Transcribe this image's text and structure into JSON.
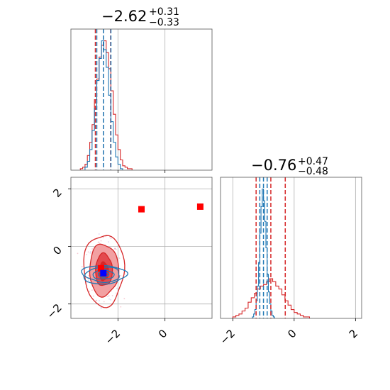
{
  "colors": {
    "red": "#d62728",
    "blue": "#1f77b4",
    "red_mid": "#e34a4e",
    "red_light": "#f2a0a2",
    "marker_red": "#ff0000",
    "marker_blue": "#0000ff"
  },
  "chart_data": {
    "type": "corner",
    "parameters": [
      {
        "title_value": "−2.62",
        "title_plus": "+0.31",
        "title_minus": "−0.33"
      },
      {
        "title_value": "−0.76",
        "title_plus": "+0.47",
        "title_minus": "−0.48"
      }
    ],
    "xlim_p1": [
      -4.0,
      2.0
    ],
    "xlim_p2": [
      -2.4,
      2.2
    ],
    "ylim_p2_2d": [
      -2.5,
      2.4
    ],
    "ticks_p1": [
      -2,
      0
    ],
    "ticks_p2": [
      -2,
      0,
      2
    ],
    "tick_labels_p1": [
      "−2",
      "0"
    ],
    "tick_labels_p2": [
      "−2",
      "0",
      "2"
    ],
    "red_quantiles_p1": [
      -2.96,
      -2.62,
      -2.31
    ],
    "blue_quantiles_p1": [
      -2.9,
      -2.62,
      -2.3
    ],
    "red_quantiles_p2": [
      -1.24,
      -0.76,
      -0.29
    ],
    "blue_quantiles_p2": [
      -1.12,
      -1.0,
      -0.88
    ],
    "hist_p1_red": {
      "edges": [
        -3.6,
        -3.5,
        -3.4,
        -3.3,
        -3.2,
        -3.1,
        -3.0,
        -2.9,
        -2.8,
        -2.7,
        -2.6,
        -2.5,
        -2.4,
        -2.3,
        -2.2,
        -2.1,
        -2.0,
        -1.9,
        -1.8,
        -1.7,
        -1.6,
        -1.5,
        -1.4
      ],
      "counts": [
        1,
        2,
        4,
        10,
        19,
        31,
        48,
        62,
        77,
        85,
        88,
        80,
        69,
        54,
        38,
        24,
        14,
        7,
        3,
        2,
        1,
        1
      ]
    },
    "hist_p1_blue": {
      "edges": [
        -3.4,
        -3.3,
        -3.2,
        -3.1,
        -3.0,
        -2.9,
        -2.8,
        -2.7,
        -2.6,
        -2.5,
        -2.4,
        -2.3,
        -2.2,
        -2.1,
        -2.0,
        -1.9,
        -1.8
      ],
      "counts": [
        2,
        6,
        14,
        27,
        42,
        61,
        76,
        88,
        82,
        70,
        51,
        33,
        19,
        9,
        4,
        1
      ]
    },
    "hist_p2_red": {
      "edges": [
        -2.0,
        -1.9,
        -1.8,
        -1.7,
        -1.6,
        -1.5,
        -1.4,
        -1.3,
        -1.2,
        -1.1,
        -1.0,
        -0.9,
        -0.8,
        -0.7,
        -0.6,
        -0.5,
        -0.4,
        -0.3,
        -0.2,
        -0.1,
        0.0,
        0.1,
        0.2,
        0.3,
        0.4,
        0.5
      ],
      "counts": [
        1,
        2,
        3,
        5,
        7,
        11,
        14,
        17,
        20,
        22,
        23,
        25,
        27,
        25,
        22,
        20,
        16,
        12,
        9,
        6,
        4,
        3,
        2,
        1,
        1
      ]
    },
    "hist_p2_blue": {
      "edges": [
        -1.36,
        -1.32,
        -1.28,
        -1.24,
        -1.2,
        -1.16,
        -1.12,
        -1.08,
        -1.04,
        -1.0,
        -0.96,
        -0.92,
        -0.88,
        -0.84,
        -0.8,
        -0.76,
        -0.72,
        -0.68,
        -0.64
      ],
      "counts": [
        1,
        3,
        6,
        12,
        22,
        38,
        58,
        76,
        88,
        80,
        66,
        48,
        30,
        18,
        10,
        5,
        2,
        1
      ]
    },
    "red_samples_2d": {
      "center": [
        -2.6,
        -0.82
      ],
      "sigma": [
        0.32,
        0.5
      ],
      "count": 320
    },
    "red_contour_levels": [
      {
        "rx": 0.36,
        "ry": 0.56,
        "shade": "red_mid"
      },
      {
        "rx": 0.62,
        "ry": 0.9,
        "shade": "red_light"
      },
      {
        "rx": 0.86,
        "ry": 1.24,
        "shade": "none"
      }
    ],
    "blue_contours_2d": {
      "center": [
        -2.62,
        -0.98
      ],
      "radii": [
        [
          0.22,
          0.09
        ],
        [
          0.45,
          0.16
        ],
        [
          0.72,
          0.26
        ],
        [
          0.95,
          0.32
        ]
      ]
    },
    "red_points": [
      [
        -1.0,
        1.29
      ],
      [
        1.5,
        1.38
      ],
      [
        -2.72,
        -0.76
      ]
    ],
    "blue_point": [
      -2.62,
      -0.93
    ]
  }
}
